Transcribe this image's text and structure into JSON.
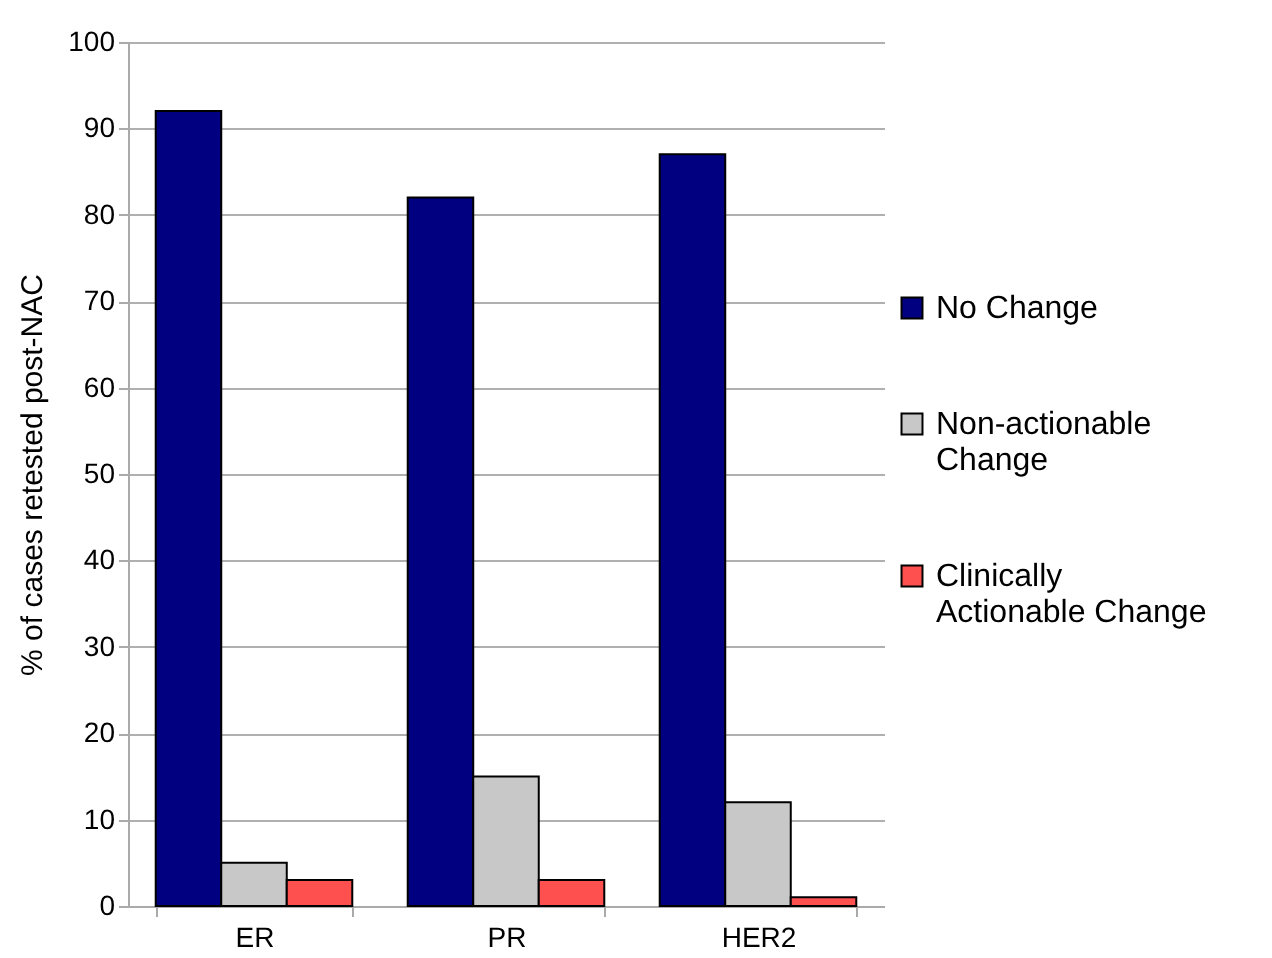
{
  "chart_data": {
    "type": "bar",
    "ylabel": "% of cases retested post-NAC",
    "categories": [
      "ER",
      "PR",
      "HER2"
    ],
    "series": [
      {
        "name": "No Change",
        "color": "#000080",
        "values": [
          92,
          82,
          87
        ]
      },
      {
        "name": "Non-actionable Change",
        "color": "#c8c8c8",
        "values": [
          5,
          15,
          12
        ]
      },
      {
        "name": "Clinically Actionable Change",
        "color": "#ff5050",
        "values": [
          3,
          3,
          1
        ]
      }
    ],
    "ylim": [
      0,
      100
    ],
    "yticks": [
      0,
      10,
      20,
      30,
      40,
      50,
      60,
      70,
      80,
      90,
      100
    ],
    "grid": "y",
    "legend": "right"
  }
}
